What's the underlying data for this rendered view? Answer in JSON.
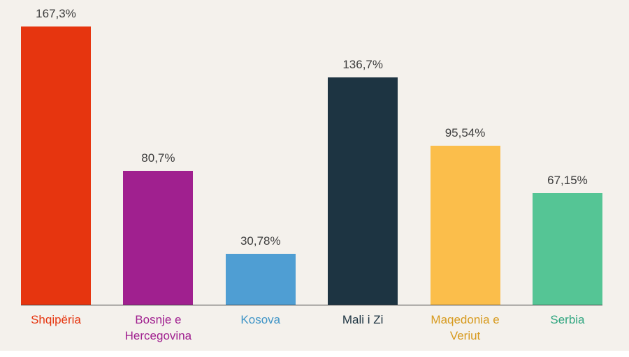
{
  "chart_data": {
    "type": "bar",
    "title": "",
    "xlabel": "",
    "ylabel": "",
    "categories": [
      "Shqipëria",
      "Bosnje e Hercegovina",
      "Kosova",
      "Mali i Zi",
      "Maqedonia e Veriut",
      "Serbia"
    ],
    "values": [
      167.3,
      80.7,
      30.78,
      136.7,
      95.54,
      67.15
    ],
    "value_labels": [
      "167,3%",
      "80,7%",
      "30,78%",
      "136,7%",
      "95,54%",
      "67,15%"
    ],
    "bar_colors": [
      "#e6350f",
      "#a0208f",
      "#4f9ed3",
      "#1d3442",
      "#fbbe4b",
      "#55c595"
    ],
    "label_colors": [
      "#e6350f",
      "#a0208f",
      "#3f94c6",
      "#1d3442",
      "#d79a1e",
      "#2fa57f"
    ],
    "ylim": [
      0,
      175
    ],
    "grid": false,
    "legend": "none",
    "background": "#f4f1ec",
    "axis_color": "#3b3b3b",
    "value_label_color": "#3d3d3d"
  }
}
